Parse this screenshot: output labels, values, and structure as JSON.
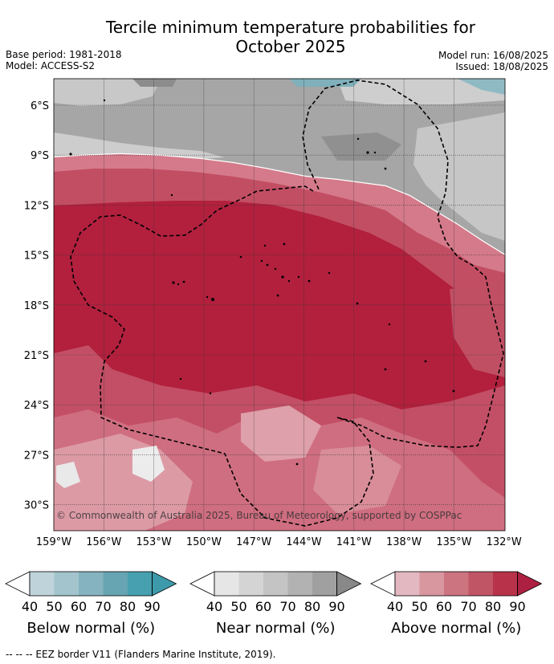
{
  "title_line1": "Tercile minimum temperature probabilities for",
  "title_line2": "October 2025",
  "meta_left": [
    "Base period: 1981-2018",
    "Model: ACCESS-S2"
  ],
  "meta_right": [
    "Model run: 16/08/2025",
    "Issued: 18/08/2025"
  ],
  "credit": "© Commonwealth of Australia 2025, Bureau of Meteorology, supported by COSPPac",
  "lat_ticks": [
    "6°S",
    "9°S",
    "12°S",
    "15°S",
    "18°S",
    "21°S",
    "24°S",
    "27°S",
    "30°S"
  ],
  "lon_ticks": [
    "159°W",
    "156°W",
    "153°W",
    "150°W",
    "147°W",
    "144°W",
    "141°W",
    "138°W",
    "135°W",
    "132°W"
  ],
  "colorbars": [
    {
      "title": "Below normal (%)",
      "ticks": [
        "40",
        "50",
        "60",
        "70",
        "80",
        "90"
      ],
      "colors": [
        "#bfd3da",
        "#a3c4cc",
        "#85b3bf",
        "#67a5b2",
        "#46a0b0"
      ],
      "arrow": "#3d9aaa"
    },
    {
      "title": "Near normal (%)",
      "ticks": [
        "40",
        "50",
        "60",
        "70",
        "80",
        "90"
      ],
      "colors": [
        "#e6e6e6",
        "#d4d4d4",
        "#c4c4c4",
        "#b2b2b2",
        "#a0a0a0"
      ],
      "arrow": "#888888"
    },
    {
      "title": "Above normal (%)",
      "ticks": [
        "40",
        "50",
        "60",
        "70",
        "80",
        "90"
      ],
      "colors": [
        "#e3b8c0",
        "#d8969f",
        "#cc7480",
        "#c05565",
        "#b8324a"
      ],
      "arrow": "#ae2041"
    }
  ],
  "footer": "--  --  -- EEZ border V11 (Flanders Marine Institute, 2019)."
}
